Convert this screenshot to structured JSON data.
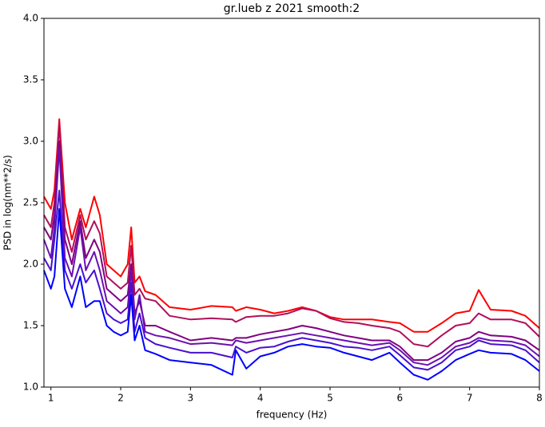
{
  "chart_data": {
    "type": "line",
    "title": "gr.lueb z 2021 smooth:2",
    "x_label": "frequency (Hz)",
    "y_label": "PSD in log(nm**2/s)",
    "x": [
      0.9,
      1.0,
      1.05,
      1.12,
      1.2,
      1.3,
      1.42,
      1.5,
      1.62,
      1.7,
      1.8,
      1.9,
      2.0,
      2.1,
      2.15,
      2.2,
      2.27,
      2.35,
      2.5,
      2.7,
      3.0,
      3.3,
      3.6,
      3.65,
      3.8,
      4.0,
      4.2,
      4.4,
      4.6,
      4.8,
      5.0,
      5.2,
      5.4,
      5.6,
      5.85,
      6.0,
      6.2,
      6.4,
      6.6,
      6.8,
      7.0,
      7.13,
      7.3,
      7.6,
      7.8,
      8.0
    ],
    "series": [
      {
        "color": "#ff0000",
        "values": [
          2.55,
          2.45,
          2.6,
          3.18,
          2.5,
          2.2,
          2.45,
          2.3,
          2.55,
          2.4,
          2.0,
          1.95,
          1.9,
          2.0,
          2.3,
          1.85,
          1.9,
          1.78,
          1.75,
          1.65,
          1.63,
          1.66,
          1.65,
          1.62,
          1.65,
          1.63,
          1.6,
          1.62,
          1.65,
          1.62,
          1.57,
          1.55,
          1.55,
          1.55,
          1.53,
          1.52,
          1.45,
          1.45,
          1.52,
          1.6,
          1.62,
          1.79,
          1.63,
          1.62,
          1.58,
          1.48
        ]
      },
      {
        "color": "#b0105a",
        "values": [
          2.4,
          2.3,
          2.5,
          3.15,
          2.3,
          2.1,
          2.4,
          2.2,
          2.35,
          2.25,
          1.9,
          1.85,
          1.8,
          1.85,
          2.15,
          1.75,
          1.8,
          1.72,
          1.7,
          1.58,
          1.55,
          1.56,
          1.55,
          1.53,
          1.57,
          1.58,
          1.58,
          1.6,
          1.64,
          1.62,
          1.56,
          1.53,
          1.52,
          1.5,
          1.48,
          1.45,
          1.35,
          1.33,
          1.42,
          1.5,
          1.52,
          1.6,
          1.55,
          1.55,
          1.52,
          1.41
        ]
      },
      {
        "color": "#800080",
        "values": [
          2.3,
          2.2,
          2.4,
          3.0,
          2.2,
          2.0,
          2.35,
          2.05,
          2.2,
          2.1,
          1.8,
          1.75,
          1.7,
          1.75,
          2.0,
          1.6,
          1.7,
          1.5,
          1.5,
          1.45,
          1.38,
          1.4,
          1.38,
          1.4,
          1.4,
          1.43,
          1.45,
          1.47,
          1.5,
          1.48,
          1.45,
          1.42,
          1.4,
          1.38,
          1.38,
          1.33,
          1.22,
          1.22,
          1.28,
          1.37,
          1.4,
          1.45,
          1.42,
          1.41,
          1.38,
          1.3
        ]
      },
      {
        "color": "#6a10b0",
        "values": [
          2.2,
          2.05,
          2.3,
          2.95,
          2.05,
          1.9,
          2.3,
          1.95,
          2.1,
          1.95,
          1.7,
          1.65,
          1.6,
          1.65,
          1.95,
          1.55,
          1.75,
          1.45,
          1.42,
          1.4,
          1.35,
          1.36,
          1.34,
          1.38,
          1.36,
          1.38,
          1.4,
          1.42,
          1.44,
          1.42,
          1.4,
          1.38,
          1.36,
          1.34,
          1.36,
          1.3,
          1.2,
          1.18,
          1.24,
          1.33,
          1.36,
          1.4,
          1.38,
          1.37,
          1.34,
          1.25
        ]
      },
      {
        "color": "#4a10d0",
        "values": [
          2.05,
          1.95,
          2.2,
          2.6,
          1.95,
          1.8,
          2.0,
          1.85,
          1.95,
          1.8,
          1.6,
          1.55,
          1.52,
          1.55,
          1.85,
          1.45,
          1.6,
          1.4,
          1.35,
          1.32,
          1.28,
          1.28,
          1.24,
          1.33,
          1.28,
          1.32,
          1.33,
          1.37,
          1.4,
          1.38,
          1.36,
          1.33,
          1.32,
          1.3,
          1.33,
          1.26,
          1.16,
          1.14,
          1.2,
          1.3,
          1.33,
          1.38,
          1.35,
          1.34,
          1.3,
          1.2
        ]
      },
      {
        "color": "#0000ff",
        "values": [
          1.95,
          1.8,
          1.9,
          2.45,
          1.8,
          1.65,
          1.9,
          1.65,
          1.7,
          1.7,
          1.5,
          1.45,
          1.42,
          1.45,
          1.75,
          1.38,
          1.5,
          1.3,
          1.27,
          1.22,
          1.2,
          1.18,
          1.1,
          1.3,
          1.15,
          1.25,
          1.28,
          1.33,
          1.35,
          1.33,
          1.32,
          1.28,
          1.25,
          1.22,
          1.28,
          1.2,
          1.1,
          1.06,
          1.13,
          1.22,
          1.27,
          1.3,
          1.28,
          1.27,
          1.22,
          1.13
        ]
      }
    ],
    "xlim": [
      0.9,
      8
    ],
    "xticks": [
      1,
      2,
      3,
      4,
      5,
      6,
      7,
      8
    ],
    "ylim": [
      1,
      4
    ],
    "yticks": [
      {
        "value": 1,
        "label": "1.0"
      },
      1.5,
      {
        "value": 2,
        "label": "2.0"
      },
      2.5,
      {
        "value": 3,
        "label": "3.0"
      },
      3.5,
      {
        "value": 4,
        "label": "4.0"
      }
    ]
  }
}
